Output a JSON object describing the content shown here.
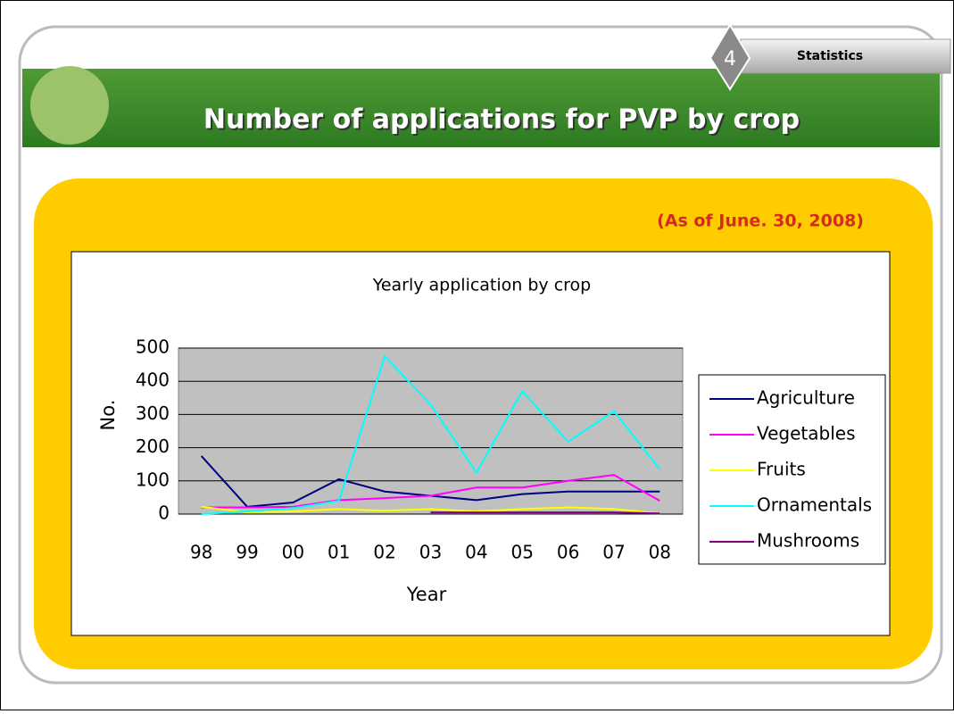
{
  "slide": {
    "tab_number": "4",
    "tab_label": "Statistics",
    "title": "Number of applications for PVP by crop",
    "note": "(As of June. 30, 2008)"
  },
  "chart_data": {
    "type": "line",
    "title": "Yearly application by crop",
    "x_label": "Year",
    "y_label": "No.",
    "categories": [
      "98",
      "99",
      "00",
      "01",
      "02",
      "03",
      "04",
      "05",
      "06",
      "07",
      "08"
    ],
    "series": [
      {
        "name": "Agriculture",
        "color": "#000080",
        "values": [
          175,
          22,
          35,
          105,
          68,
          55,
          42,
          60,
          68,
          68,
          68
        ]
      },
      {
        "name": "Vegetables",
        "color": "#ff00ff",
        "values": [
          20,
          20,
          22,
          42,
          48,
          55,
          80,
          80,
          100,
          118,
          40
        ]
      },
      {
        "name": "Fruits",
        "color": "#ffff00",
        "values": [
          22,
          5,
          8,
          15,
          10,
          15,
          8,
          15,
          20,
          15,
          2
        ]
      },
      {
        "name": "Ornamentals",
        "color": "#00ffff",
        "values": [
          0,
          8,
          18,
          40,
          475,
          330,
          125,
          370,
          218,
          310,
          135
        ]
      },
      {
        "name": "Mushrooms",
        "color": "#800080",
        "values": [
          null,
          null,
          null,
          null,
          null,
          5,
          5,
          5,
          5,
          5,
          2
        ]
      }
    ],
    "ylim": [
      0,
      500
    ],
    "yticks": [
      0,
      100,
      200,
      300,
      400,
      500
    ],
    "grid": true,
    "legend": "right"
  }
}
